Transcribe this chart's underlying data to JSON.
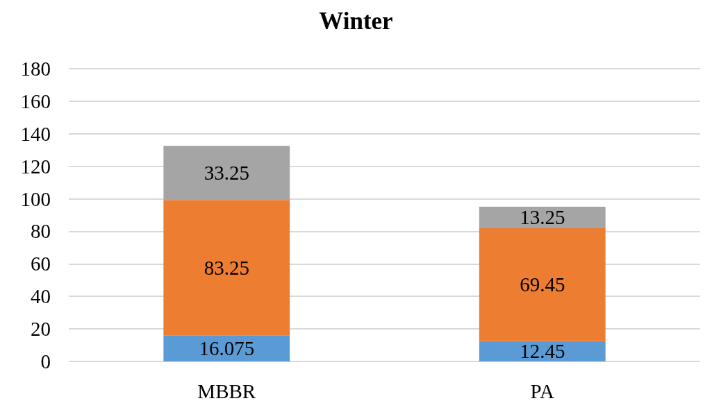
{
  "chart_data": {
    "type": "bar",
    "title": "Winter",
    "categories": [
      "MBBR",
      "PA"
    ],
    "series": [
      {
        "color": "#5b9bd5",
        "values": [
          16.075,
          12.45
        ]
      },
      {
        "color": "#ed7d31",
        "values": [
          83.25,
          69.45
        ]
      },
      {
        "color": "#a5a5a5",
        "values": [
          33.25,
          13.25
        ]
      }
    ],
    "stacked": true,
    "data_labels": true,
    "ylim": [
      0,
      180
    ],
    "yticks": [
      0,
      20,
      40,
      60,
      80,
      100,
      120,
      140,
      160,
      180
    ],
    "grid": "y"
  }
}
